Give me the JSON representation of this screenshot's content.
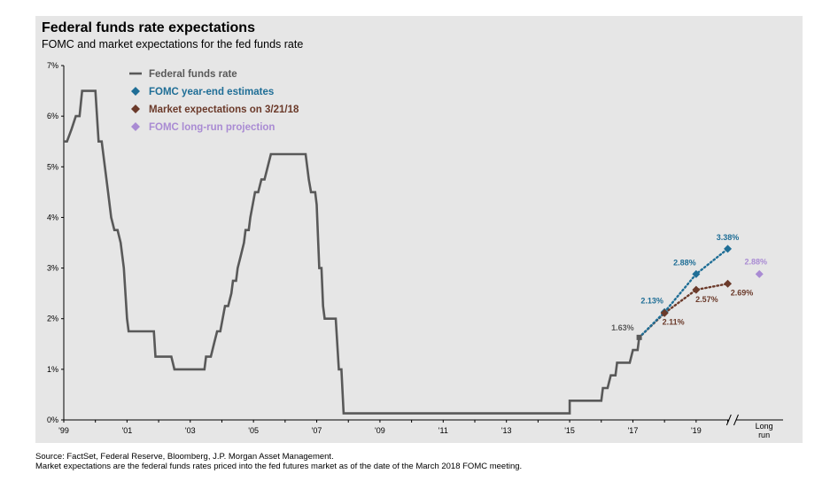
{
  "title": "Federal funds rate expectations",
  "subtitle": "FOMC and market expectations for the fed funds rate",
  "footer": {
    "source": "Source: FactSet, Federal Reserve, Bloomberg, J.P. Morgan Asset Management.",
    "note": "Market expectations are the federal funds rates priced into the fed futures market as of the date of the March 2018 FOMC meeting."
  },
  "chart_data": {
    "type": "line",
    "ylim": [
      0,
      7
    ],
    "xlim": [
      1999,
      2021.75
    ],
    "yticks": [
      "0%",
      "1%",
      "2%",
      "3%",
      "4%",
      "5%",
      "6%",
      "7%"
    ],
    "xticks": [
      {
        "x": 1999,
        "label": "'99"
      },
      {
        "x": 2001,
        "label": "'01"
      },
      {
        "x": 2003,
        "label": "'03"
      },
      {
        "x": 2005,
        "label": "'05"
      },
      {
        "x": 2007,
        "label": "'07"
      },
      {
        "x": 2009,
        "label": "'09"
      },
      {
        "x": 2011,
        "label": "'11"
      },
      {
        "x": 2013,
        "label": "'13"
      },
      {
        "x": 2015,
        "label": "'15"
      },
      {
        "x": 2017,
        "label": "'17"
      },
      {
        "x": 2019,
        "label": "'19"
      }
    ],
    "long_run_label": [
      "Long",
      "run"
    ],
    "legend_position": "top-left",
    "colors": {
      "fed_funds": "#595959",
      "fomc": "#1f6e96",
      "market": "#6b3a2a",
      "long_run": "#a98bd3"
    },
    "series": [
      {
        "name": "Federal funds rate",
        "style": "step-line",
        "color": "#595959",
        "points": [
          [
            1999.0,
            5.5
          ],
          [
            1999.1,
            5.5
          ],
          [
            1999.25,
            5.75
          ],
          [
            1999.38,
            6.0
          ],
          [
            1999.5,
            6.0
          ],
          [
            1999.58,
            6.5
          ],
          [
            2000.0,
            6.5
          ],
          [
            2000.1,
            5.5
          ],
          [
            2000.2,
            5.5
          ],
          [
            2000.3,
            5.0
          ],
          [
            2000.4,
            4.5
          ],
          [
            2000.5,
            4.0
          ],
          [
            2000.6,
            3.75
          ],
          [
            2000.7,
            3.75
          ],
          [
            2000.8,
            3.5
          ],
          [
            2000.9,
            3.0
          ],
          [
            2000.95,
            2.5
          ],
          [
            2001.0,
            2.0
          ],
          [
            2001.05,
            1.75
          ],
          [
            2001.85,
            1.75
          ],
          [
            2001.9,
            1.25
          ],
          [
            2002.4,
            1.25
          ],
          [
            2002.5,
            1.0
          ],
          [
            2003.45,
            1.0
          ],
          [
            2003.5,
            1.25
          ],
          [
            2003.65,
            1.25
          ],
          [
            2003.75,
            1.5
          ],
          [
            2003.85,
            1.75
          ],
          [
            2003.95,
            1.75
          ],
          [
            2004.1,
            2.25
          ],
          [
            2004.2,
            2.25
          ],
          [
            2004.3,
            2.5
          ],
          [
            2004.35,
            2.75
          ],
          [
            2004.45,
            2.75
          ],
          [
            2004.5,
            3.0
          ],
          [
            2004.6,
            3.25
          ],
          [
            2004.7,
            3.5
          ],
          [
            2004.75,
            3.75
          ],
          [
            2004.85,
            3.75
          ],
          [
            2004.9,
            4.0
          ],
          [
            2005.05,
            4.5
          ],
          [
            2005.15,
            4.5
          ],
          [
            2005.25,
            4.75
          ],
          [
            2005.35,
            4.75
          ],
          [
            2005.45,
            5.0
          ],
          [
            2005.55,
            5.25
          ],
          [
            2006.65,
            5.25
          ],
          [
            2006.75,
            4.75
          ],
          [
            2006.82,
            4.5
          ],
          [
            2006.95,
            4.5
          ],
          [
            2007.0,
            4.25
          ],
          [
            2007.08,
            3.0
          ],
          [
            2007.15,
            3.0
          ],
          [
            2007.2,
            2.25
          ],
          [
            2007.25,
            2.0
          ],
          [
            2007.6,
            2.0
          ],
          [
            2007.7,
            1.0
          ],
          [
            2007.78,
            1.0
          ],
          [
            2007.85,
            0.13
          ],
          [
            2015.0,
            0.13
          ],
          [
            2015.0,
            0.38
          ],
          [
            2016.0,
            0.38
          ],
          [
            2016.05,
            0.63
          ],
          [
            2016.2,
            0.63
          ],
          [
            2016.3,
            0.88
          ],
          [
            2016.45,
            0.88
          ],
          [
            2016.5,
            1.13
          ],
          [
            2016.9,
            1.13
          ],
          [
            2017.0,
            1.38
          ],
          [
            2017.15,
            1.38
          ],
          [
            2017.2,
            1.63
          ]
        ]
      },
      {
        "name": "FOMC year-end estimates",
        "style": "dotted-diamond",
        "color": "#1f6e96",
        "start": [
          2017.2,
          1.63
        ],
        "points": [
          {
            "x": 2018.0,
            "y": 2.13,
            "label": "2.13%"
          },
          {
            "x": 2019.0,
            "y": 2.88,
            "label": "2.88%"
          },
          {
            "x": 2020.0,
            "y": 3.38,
            "label": "3.38%"
          }
        ]
      },
      {
        "name": "Market expectations on 3/21/18",
        "style": "dotted-diamond",
        "color": "#6b3a2a",
        "start": [
          2017.2,
          1.63
        ],
        "points": [
          {
            "x": 2018.0,
            "y": 2.11,
            "label": "2.11%"
          },
          {
            "x": 2019.0,
            "y": 2.57,
            "label": "2.57%"
          },
          {
            "x": 2020.0,
            "y": 2.69,
            "label": "2.69%"
          }
        ]
      },
      {
        "name": "FOMC long-run projection",
        "style": "diamond",
        "color": "#a98bd3",
        "points": [
          {
            "x": 2021.0,
            "y": 2.88,
            "label": "2.88%"
          }
        ]
      }
    ],
    "start_point_label": "1.63%"
  }
}
